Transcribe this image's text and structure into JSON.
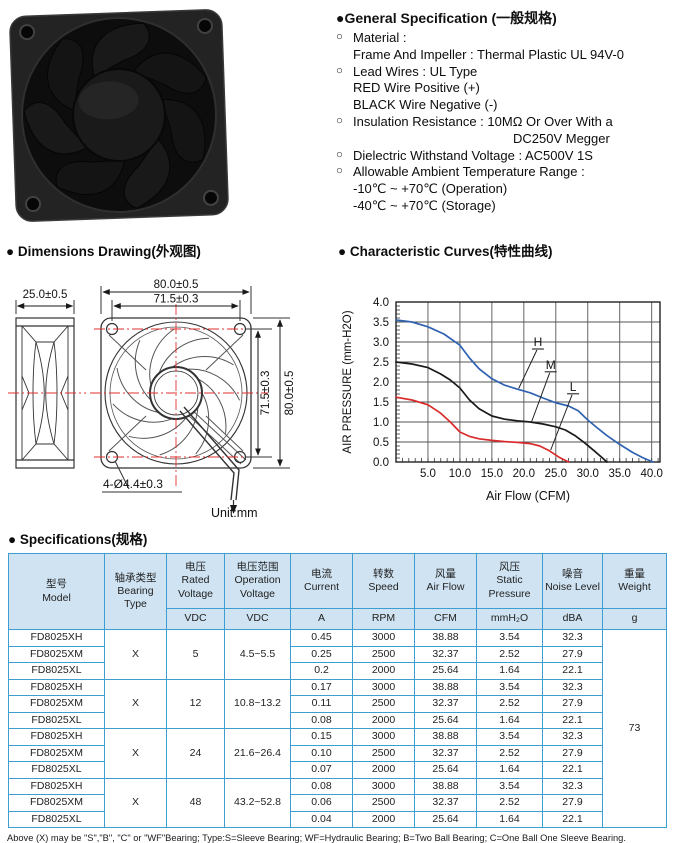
{
  "colors": {
    "table_border": "#3d9ed2",
    "table_header_bg": "#cfe3f2",
    "centerline_red": "#e03030",
    "curve_h_blue": "#2f62b0",
    "curve_m_black": "#1a1a1a",
    "curve_l_red": "#d92b2b"
  },
  "general_spec": {
    "title": "●General Specification (一般规格)",
    "bullet": "○",
    "items": [
      {
        "lines": [
          "Material :",
          "Frame And Impeller : Thermal Plastic UL 94V-0"
        ]
      },
      {
        "lines": [
          "Lead Wires : UL Type",
          "RED Wire Positive (+)",
          "BLACK Wire Negative (-)"
        ]
      },
      {
        "lines": [
          "Insulation Resistance : 10MΩ Or Over With a",
          {
            "text": "DC250V Megger",
            "indent": 160
          }
        ]
      },
      {
        "lines": [
          "Dielectric Withstand Voltage : AC500V 1S"
        ]
      },
      {
        "lines": [
          "Allowable Ambient Temperature Range :",
          "-10℃ ~ +70℃ (Operation)",
          "-40℃ ~ +70℃ (Storage)"
        ]
      }
    ]
  },
  "dimensions": {
    "title": "● Dimensions Drawing(外观图)",
    "labels": {
      "depth": "25.0±0.5",
      "width_outer": "80.0±0.5",
      "width_holes": "71.5±0.3",
      "height_holes": "71.5±0.3",
      "height_outer": "80.0±0.5",
      "holes": "4-Ø4.4±0.3",
      "unit": "Unit:mm"
    }
  },
  "curves_section": {
    "title": "● Characteristic Curves(特性曲线)"
  },
  "chart_data": {
    "type": "line",
    "title": "Characteristic Curves(特性曲线)",
    "xlabel": "Air Flow (CFM)",
    "ylabel": "AIR PRESSURE (mm-H2O)",
    "xlim": [
      0,
      41.3
    ],
    "ylim": [
      0,
      4.0
    ],
    "xticks": [
      "5.0",
      "10.0",
      "15.0",
      "20.0",
      "25.0",
      "30.0",
      "35.0",
      "40.0"
    ],
    "yticks": [
      "0.0",
      "0.5",
      "1.0",
      "1.5",
      "2.0",
      "2.5",
      "3.0",
      "3.5",
      "4.0"
    ],
    "grid": true,
    "legend_position": "inline-labels",
    "series": [
      {
        "name": "H",
        "color": "#2f62b0",
        "points": [
          [
            0,
            3.55
          ],
          [
            2.5,
            3.5
          ],
          [
            5,
            3.38
          ],
          [
            7.5,
            3.2
          ],
          [
            10,
            2.92
          ],
          [
            11.5,
            2.6
          ],
          [
            13,
            2.33
          ],
          [
            15,
            2.08
          ],
          [
            17,
            1.92
          ],
          [
            19,
            1.82
          ],
          [
            21,
            1.73
          ],
          [
            23,
            1.6
          ],
          [
            25,
            1.48
          ],
          [
            27,
            1.4
          ],
          [
            28.5,
            1.28
          ],
          [
            30,
            1.05
          ],
          [
            31.5,
            0.85
          ],
          [
            33,
            0.66
          ],
          [
            35,
            0.44
          ],
          [
            37,
            0.24
          ],
          [
            38.7,
            0.1
          ],
          [
            40.2,
            0.0
          ]
        ]
      },
      {
        "name": "M",
        "color": "#1a1a1a",
        "points": [
          [
            0,
            2.5
          ],
          [
            2.5,
            2.45
          ],
          [
            5,
            2.36
          ],
          [
            7,
            2.2
          ],
          [
            8.5,
            2.05
          ],
          [
            10,
            1.85
          ],
          [
            11.5,
            1.55
          ],
          [
            13,
            1.33
          ],
          [
            15,
            1.15
          ],
          [
            17,
            1.07
          ],
          [
            19,
            1.03
          ],
          [
            21,
            1.0
          ],
          [
            23,
            0.95
          ],
          [
            25,
            0.88
          ],
          [
            26.5,
            0.8
          ],
          [
            28,
            0.66
          ],
          [
            29.5,
            0.48
          ],
          [
            31,
            0.28
          ],
          [
            32.3,
            0.1
          ],
          [
            33,
            0.0
          ]
        ]
      },
      {
        "name": "L",
        "color": "#d92b2b",
        "points": [
          [
            0,
            1.62
          ],
          [
            2.5,
            1.55
          ],
          [
            5,
            1.43
          ],
          [
            7,
            1.22
          ],
          [
            8.5,
            1.0
          ],
          [
            10,
            0.75
          ],
          [
            11.5,
            0.64
          ],
          [
            13,
            0.58
          ],
          [
            15,
            0.54
          ],
          [
            17,
            0.51
          ],
          [
            19,
            0.49
          ],
          [
            21,
            0.46
          ],
          [
            22.5,
            0.4
          ],
          [
            24,
            0.28
          ],
          [
            25.5,
            0.12
          ],
          [
            27,
            0.0
          ]
        ]
      }
    ],
    "series_labels": [
      {
        "text": "H",
        "x": 22.2,
        "y": 2.9,
        "lx": 19.2,
        "ly": 1.84
      },
      {
        "text": "M",
        "x": 24.2,
        "y": 2.33,
        "lx": 21.2,
        "ly": 1.0
      },
      {
        "text": "L",
        "x": 27.7,
        "y": 1.78,
        "lx": 24.2,
        "ly": 0.3
      }
    ]
  },
  "specs": {
    "title": "● Specifications(规格)",
    "columns": [
      {
        "key": "model",
        "cn": "型号",
        "en": "Model",
        "unit": ""
      },
      {
        "key": "bearing",
        "cn": "轴承类型",
        "en": "Bearing Type",
        "unit": ""
      },
      {
        "key": "rated_voltage",
        "cn": "电压",
        "en": "Rated Voltage",
        "unit": "VDC"
      },
      {
        "key": "operation_voltage",
        "cn": "电压范围",
        "en": "Operation Voltage",
        "unit": "VDC"
      },
      {
        "key": "current",
        "cn": "电流",
        "en": "Current",
        "unit": "A"
      },
      {
        "key": "speed",
        "cn": "转数",
        "en": "Speed",
        "unit": "RPM"
      },
      {
        "key": "air_flow",
        "cn": "风量",
        "en": "Air Flow",
        "unit": "CFM"
      },
      {
        "key": "static_pressure",
        "cn": "风压",
        "en": "Static Pressure",
        "unit": "mmH₂O"
      },
      {
        "key": "noise",
        "cn": "噪音",
        "en": "Noise Level",
        "unit": "dBA"
      },
      {
        "key": "weight",
        "cn": "重量",
        "en": "Weight",
        "unit": "g"
      }
    ],
    "groups": [
      {
        "bearing": "X",
        "rated_voltage": "5",
        "operation_voltage": "4.5~5.5",
        "rows": [
          {
            "model": "FD8025XH",
            "current": "0.45",
            "speed": "3000",
            "air_flow": "38.88",
            "static_pressure": "3.54",
            "noise": "32.3"
          },
          {
            "model": "FD8025XM",
            "current": "0.25",
            "speed": "2500",
            "air_flow": "32.37",
            "static_pressure": "2.52",
            "noise": "27.9"
          },
          {
            "model": "FD8025XL",
            "current": "0.2",
            "speed": "2000",
            "air_flow": "25.64",
            "static_pressure": "1.64",
            "noise": "22.1"
          }
        ]
      },
      {
        "bearing": "X",
        "rated_voltage": "12",
        "operation_voltage": "10.8~13.2",
        "rows": [
          {
            "model": "FD8025XH",
            "current": "0.17",
            "speed": "3000",
            "air_flow": "38.88",
            "static_pressure": "3.54",
            "noise": "32.3"
          },
          {
            "model": "FD8025XM",
            "current": "0.11",
            "speed": "2500",
            "air_flow": "32.37",
            "static_pressure": "2.52",
            "noise": "27.9"
          },
          {
            "model": "FD8025XL",
            "current": "0.08",
            "speed": "2000",
            "air_flow": "25.64",
            "static_pressure": "1.64",
            "noise": "22.1"
          }
        ]
      },
      {
        "bearing": "X",
        "rated_voltage": "24",
        "operation_voltage": "21.6~26.4",
        "rows": [
          {
            "model": "FD8025XH",
            "current": "0.15",
            "speed": "3000",
            "air_flow": "38.88",
            "static_pressure": "3.54",
            "noise": "32.3"
          },
          {
            "model": "FD8025XM",
            "current": "0.10",
            "speed": "2500",
            "air_flow": "32.37",
            "static_pressure": "2.52",
            "noise": "27.9"
          },
          {
            "model": "FD8025XL",
            "current": "0.07",
            "speed": "2000",
            "air_flow": "25.64",
            "static_pressure": "1.64",
            "noise": "22.1"
          }
        ]
      },
      {
        "bearing": "X",
        "rated_voltage": "48",
        "operation_voltage": "43.2~52.8",
        "rows": [
          {
            "model": "FD8025XH",
            "current": "0.08",
            "speed": "3000",
            "air_flow": "38.88",
            "static_pressure": "3.54",
            "noise": "32.3"
          },
          {
            "model": "FD8025XM",
            "current": "0.06",
            "speed": "2500",
            "air_flow": "32.37",
            "static_pressure": "2.52",
            "noise": "27.9"
          },
          {
            "model": "FD8025XL",
            "current": "0.04",
            "speed": "2000",
            "air_flow": "25.64",
            "static_pressure": "1.64",
            "noise": "22.1"
          }
        ]
      }
    ],
    "weight": "73",
    "footnote": "Above (X) may be \"S\",\"B\", \"C\" or \"WF\"Bearing;  Type:S=Sleeve Bearing;  WF=Hydraulic Bearing;  B=Two Ball Bearing;  C=One Ball One Sleeve Bearing."
  }
}
